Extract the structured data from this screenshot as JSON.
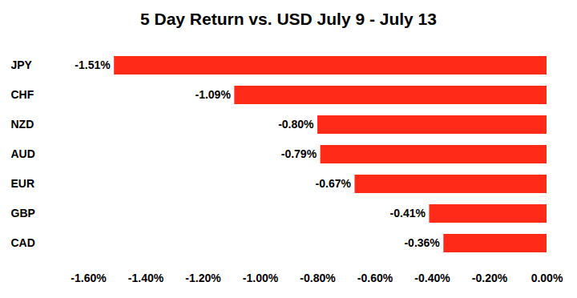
{
  "chart_data": {
    "type": "bar",
    "title": "5 Day Return vs. USD July 9 - July 13",
    "orientation": "horizontal",
    "categories": [
      "JPY",
      "CHF",
      "NZD",
      "AUD",
      "EUR",
      "GBP",
      "CAD"
    ],
    "values": [
      -1.51,
      -1.09,
      -0.8,
      -0.79,
      -0.67,
      -0.41,
      -0.36
    ],
    "value_labels": [
      "-1.51%",
      "-1.09%",
      "-0.80%",
      "-0.79%",
      "-0.67%",
      "-0.41%",
      "-0.36%"
    ],
    "color": "#ff2a17",
    "data_labels": true,
    "grid": false,
    "xlim": [
      -1.6,
      0
    ],
    "xticks": [
      {
        "value": -1.6,
        "label": "-1.60%"
      },
      {
        "value": -1.4,
        "label": "-1.40%"
      },
      {
        "value": -1.2,
        "label": "-1.20%"
      },
      {
        "value": -1.0,
        "label": "-1.00%"
      },
      {
        "value": -0.8,
        "label": "-0.80%"
      },
      {
        "value": -0.6,
        "label": "-0.60%"
      },
      {
        "value": -0.4,
        "label": "-0.40%"
      },
      {
        "value": -0.2,
        "label": "-0.20%"
      },
      {
        "value": 0,
        "label": "0.00%"
      }
    ]
  }
}
